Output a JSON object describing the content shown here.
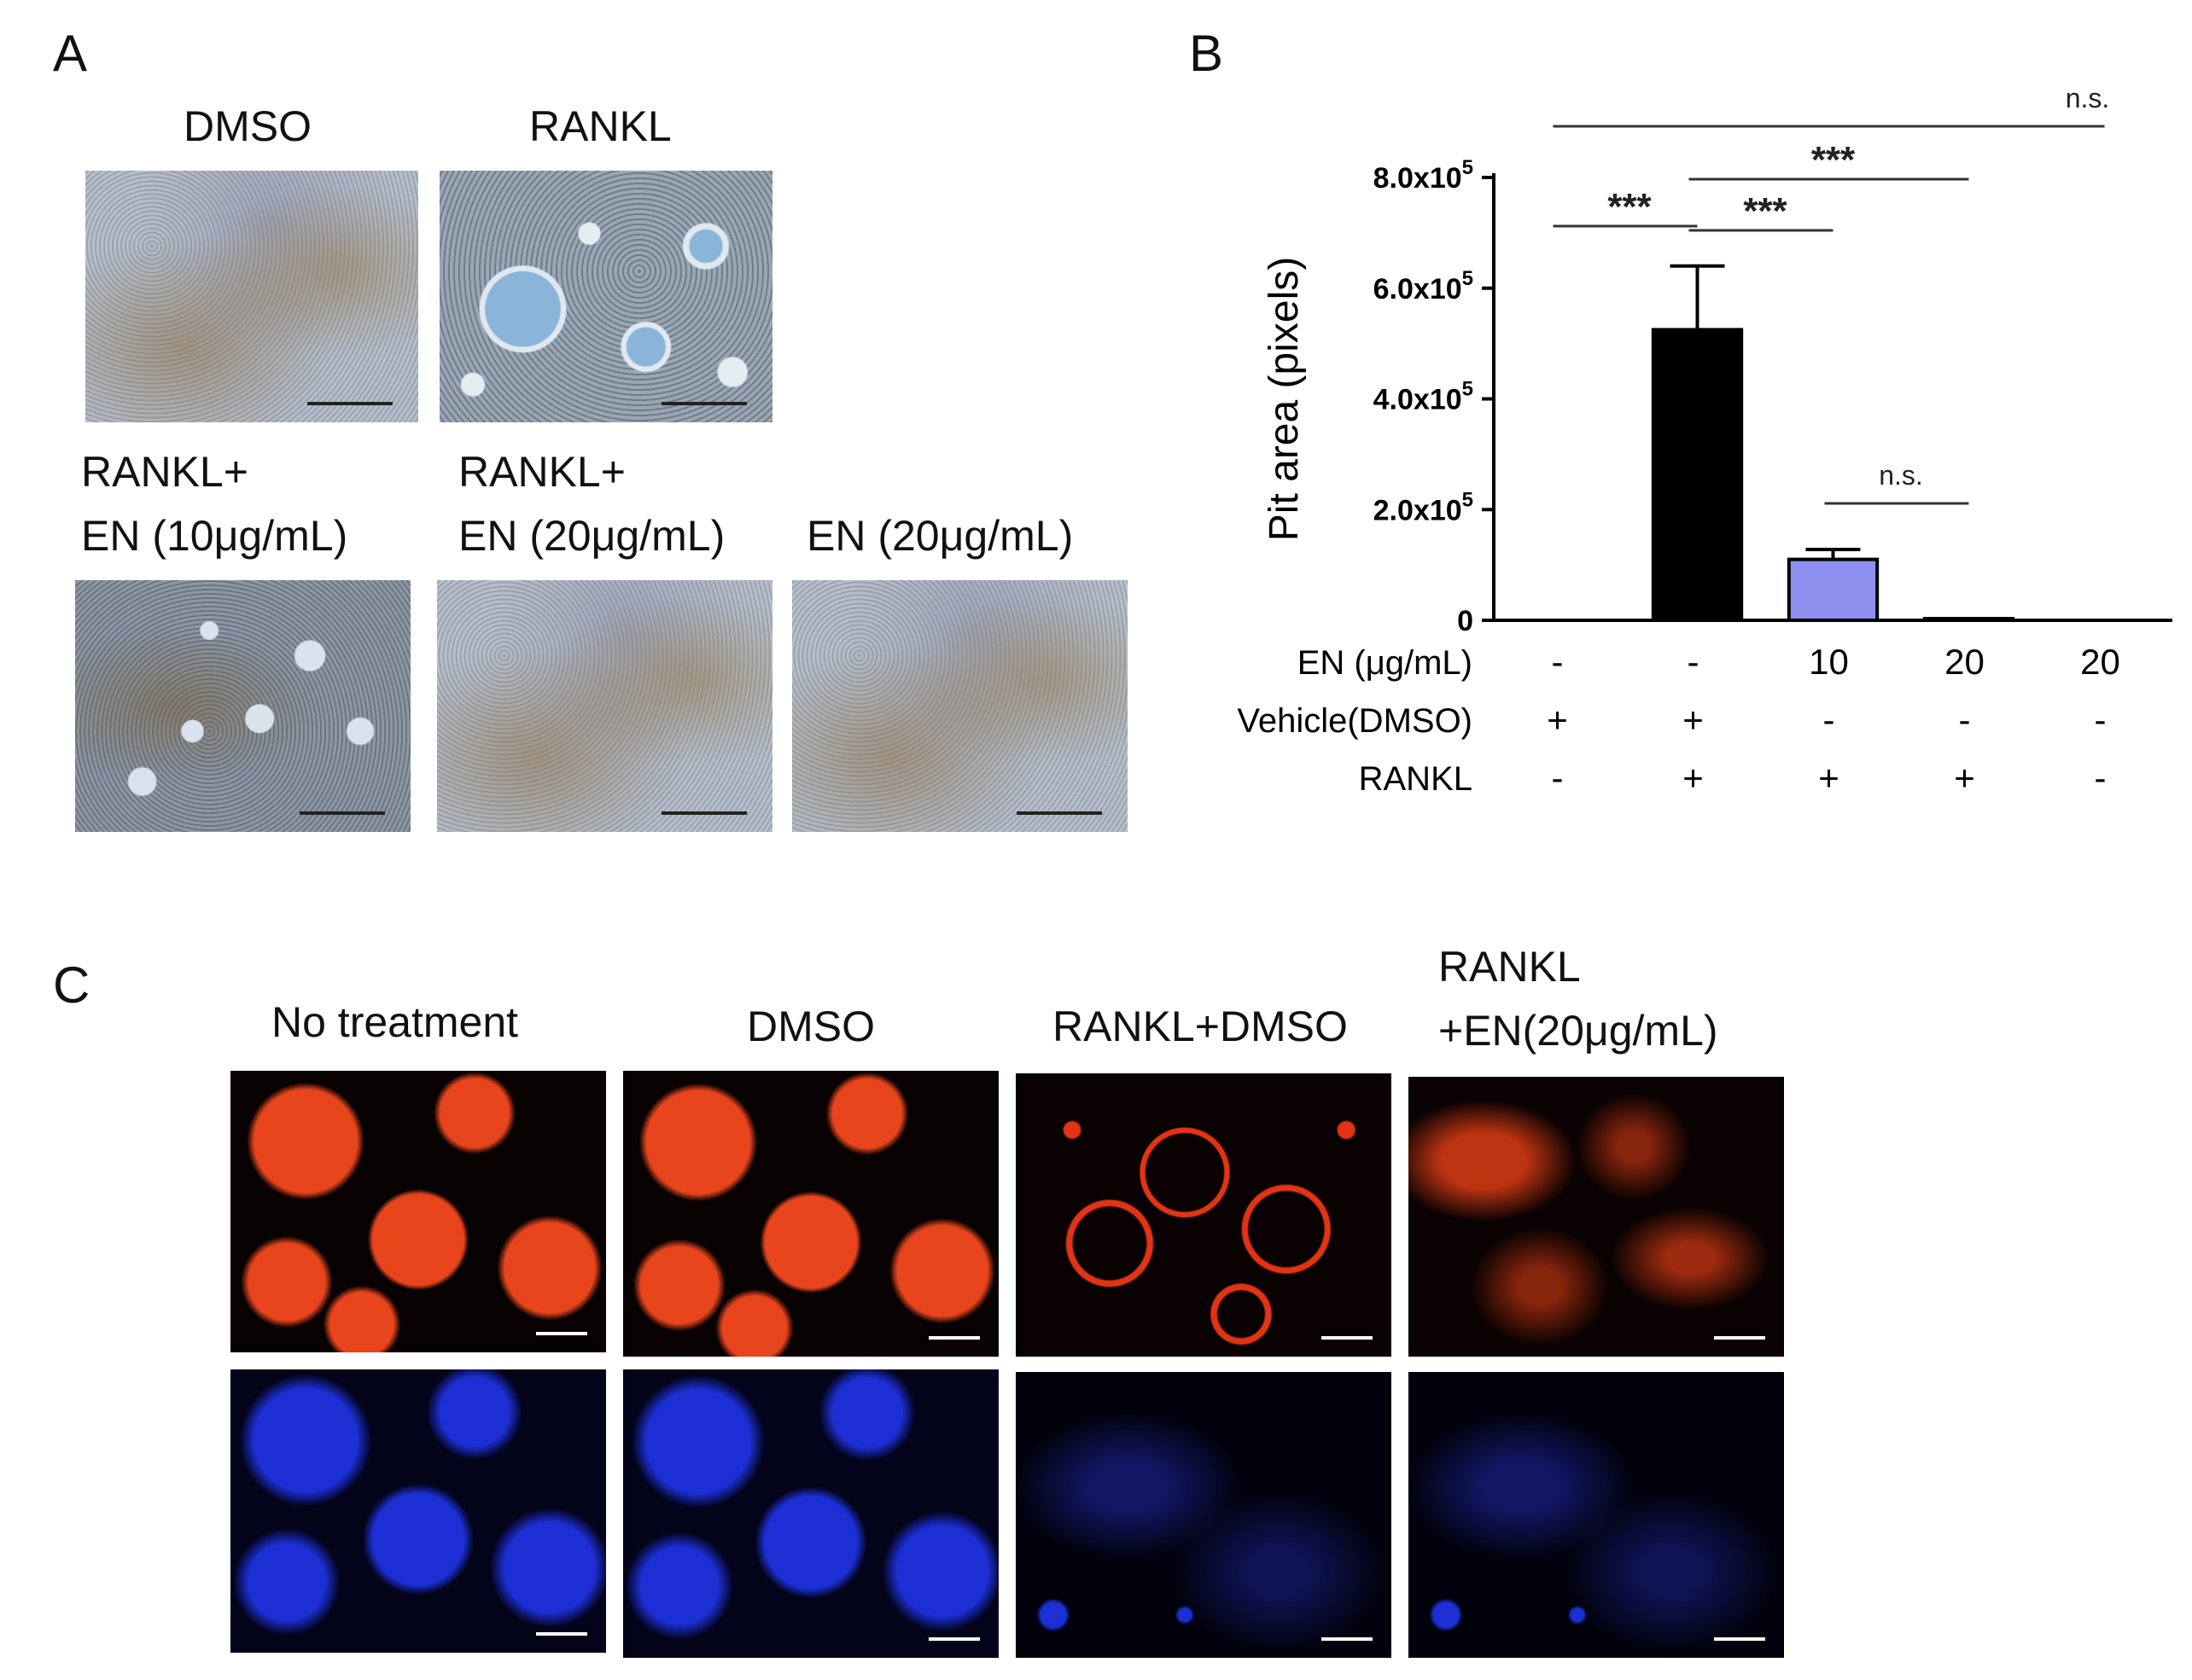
{
  "panels": {
    "a": {
      "letter": "A",
      "labels": {
        "dmso": "DMSO",
        "rankl": "RANKL",
        "rankl_en10_line1": "RANKL+",
        "rankl_en10_line2": "EN (10μg/mL)",
        "rankl_en20_line1": "RANKL+",
        "rankl_en20_line2": "EN (20μg/mL)",
        "en20": "EN (20μg/mL)"
      }
    },
    "b": {
      "letter": "B"
    },
    "c": {
      "letter": "C",
      "labels": {
        "no_treatment": "No treatment",
        "dmso": "DMSO",
        "rankl_dmso": "RANKL+DMSO",
        "rankl_en_line1": "RANKL",
        "rankl_en_line2": "+EN(20μg/mL)"
      }
    }
  },
  "chart_data": {
    "type": "bar",
    "ylabel": "Pit area (pixels)",
    "ylim": [
      0,
      800000
    ],
    "yticks": [
      {
        "value": 0,
        "label": "0"
      },
      {
        "value": 200000,
        "base": "2.0x10",
        "exp": "5"
      },
      {
        "value": 400000,
        "base": "4.0x10",
        "exp": "5"
      },
      {
        "value": 600000,
        "base": "6.0x10",
        "exp": "5"
      },
      {
        "value": 800000,
        "base": "8.0x10",
        "exp": "5"
      }
    ],
    "values": [
      0,
      525000,
      110000,
      3000,
      0
    ],
    "errors": [
      0,
      115000,
      18000,
      0,
      0
    ],
    "bar_colors": [
      "#000000",
      "#000000",
      "#8f8ff0",
      "#8f8ff0",
      "#8f8ff0"
    ],
    "row_labels": [
      "EN (μg/mL)",
      "Vehicle(DMSO)",
      "RANKL"
    ],
    "rows": [
      [
        "-",
        "-",
        "10",
        "20",
        "20"
      ],
      [
        "+",
        "+",
        "-",
        "-",
        "-"
      ],
      [
        "-",
        "+",
        "+",
        "+",
        "-"
      ]
    ],
    "significance": [
      {
        "from": 0,
        "to": 4,
        "label": "n.s."
      },
      {
        "from": 1,
        "to": 3,
        "label": "***"
      },
      {
        "from": 0,
        "to": 1,
        "label": "***"
      },
      {
        "from": 1,
        "to": 2,
        "label": "***"
      },
      {
        "from": 2,
        "to": 3,
        "label": "n.s."
      }
    ]
  }
}
